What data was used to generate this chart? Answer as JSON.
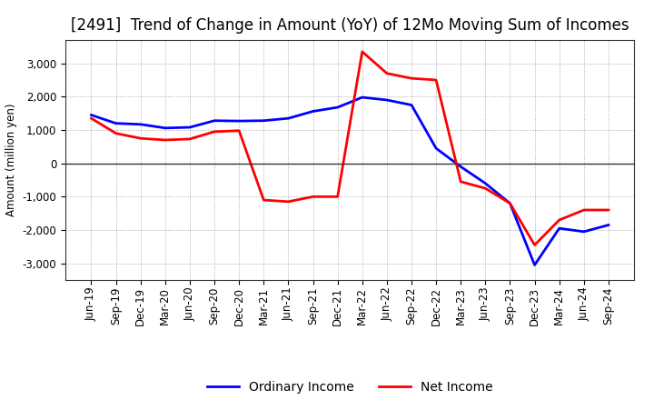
{
  "title": "[2491]  Trend of Change in Amount (YoY) of 12Mo Moving Sum of Incomes",
  "ylabel": "Amount (million yen)",
  "xlabels": [
    "Jun-19",
    "Sep-19",
    "Dec-19",
    "Mar-20",
    "Jun-20",
    "Sep-20",
    "Dec-20",
    "Mar-21",
    "Jun-21",
    "Sep-21",
    "Dec-21",
    "Mar-22",
    "Jun-22",
    "Sep-22",
    "Dec-22",
    "Mar-23",
    "Jun-23",
    "Sep-23",
    "Dec-23",
    "Mar-24",
    "Jun-24",
    "Sep-24"
  ],
  "ordinary_income": [
    1450,
    1200,
    1170,
    1060,
    1080,
    1280,
    1270,
    1280,
    1350,
    1560,
    1680,
    1980,
    1900,
    1750,
    450,
    -100,
    -600,
    -1200,
    -3050,
    -1950,
    -2050,
    -1850
  ],
  "net_income": [
    1350,
    900,
    750,
    700,
    730,
    950,
    980,
    -1100,
    -1150,
    -1000,
    -1000,
    3350,
    2700,
    2550,
    2500,
    -550,
    -750,
    -1200,
    -2450,
    -1700,
    -1400,
    -1400
  ],
  "ordinary_income_color": "#0000ff",
  "net_income_color": "#ff0000",
  "ylim": [
    -3500,
    3700
  ],
  "yticks": [
    -3000,
    -2000,
    -1000,
    0,
    1000,
    2000,
    3000
  ],
  "background_color": "#ffffff",
  "grid_color": "#999999",
  "title_fontsize": 12,
  "legend_fontsize": 10,
  "axis_fontsize": 8.5,
  "linewidth": 2.0
}
